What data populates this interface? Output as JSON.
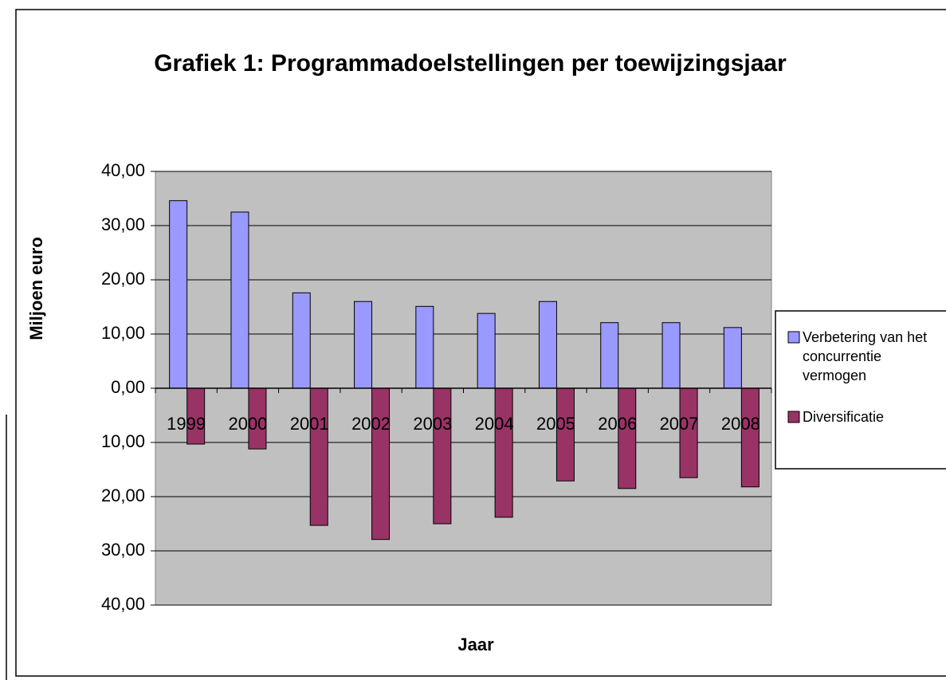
{
  "chart_data": {
    "type": "bar",
    "title": "Grafiek 1: Programmadoelstellingen per toewijzingsjaar",
    "x_label": "Jaar",
    "y_label": "Miljoen euro",
    "categories": [
      "1999",
      "2000",
      "2001",
      "2002",
      "2003",
      "2004",
      "2005",
      "2006",
      "2007",
      "2008"
    ],
    "series": [
      {
        "name": "Verbetering van het concurrentie vermogen",
        "color": "#9999ff",
        "values": [
          34.6,
          32.5,
          17.6,
          16.0,
          15.1,
          13.8,
          16.0,
          12.1,
          12.1,
          11.2
        ]
      },
      {
        "name": "Diversificatie",
        "color": "#993366",
        "values": [
          -10.3,
          -11.2,
          -25.3,
          -27.9,
          -25.0,
          -23.8,
          -17.1,
          -18.5,
          -16.5,
          -18.2
        ]
      }
    ],
    "ylim": [
      -40,
      40
    ],
    "yticks": [
      {
        "value": 40,
        "label": "40,00"
      },
      {
        "value": 30,
        "label": "30,00"
      },
      {
        "value": 20,
        "label": "20,00"
      },
      {
        "value": 10,
        "label": "10,00"
      },
      {
        "value": 0,
        "label": "0,00"
      },
      {
        "value": -10,
        "label": "10,00"
      },
      {
        "value": -20,
        "label": "20,00"
      },
      {
        "value": -30,
        "label": "30,00"
      },
      {
        "value": -40,
        "label": "40,00"
      }
    ],
    "grid": true,
    "legend": "right"
  }
}
